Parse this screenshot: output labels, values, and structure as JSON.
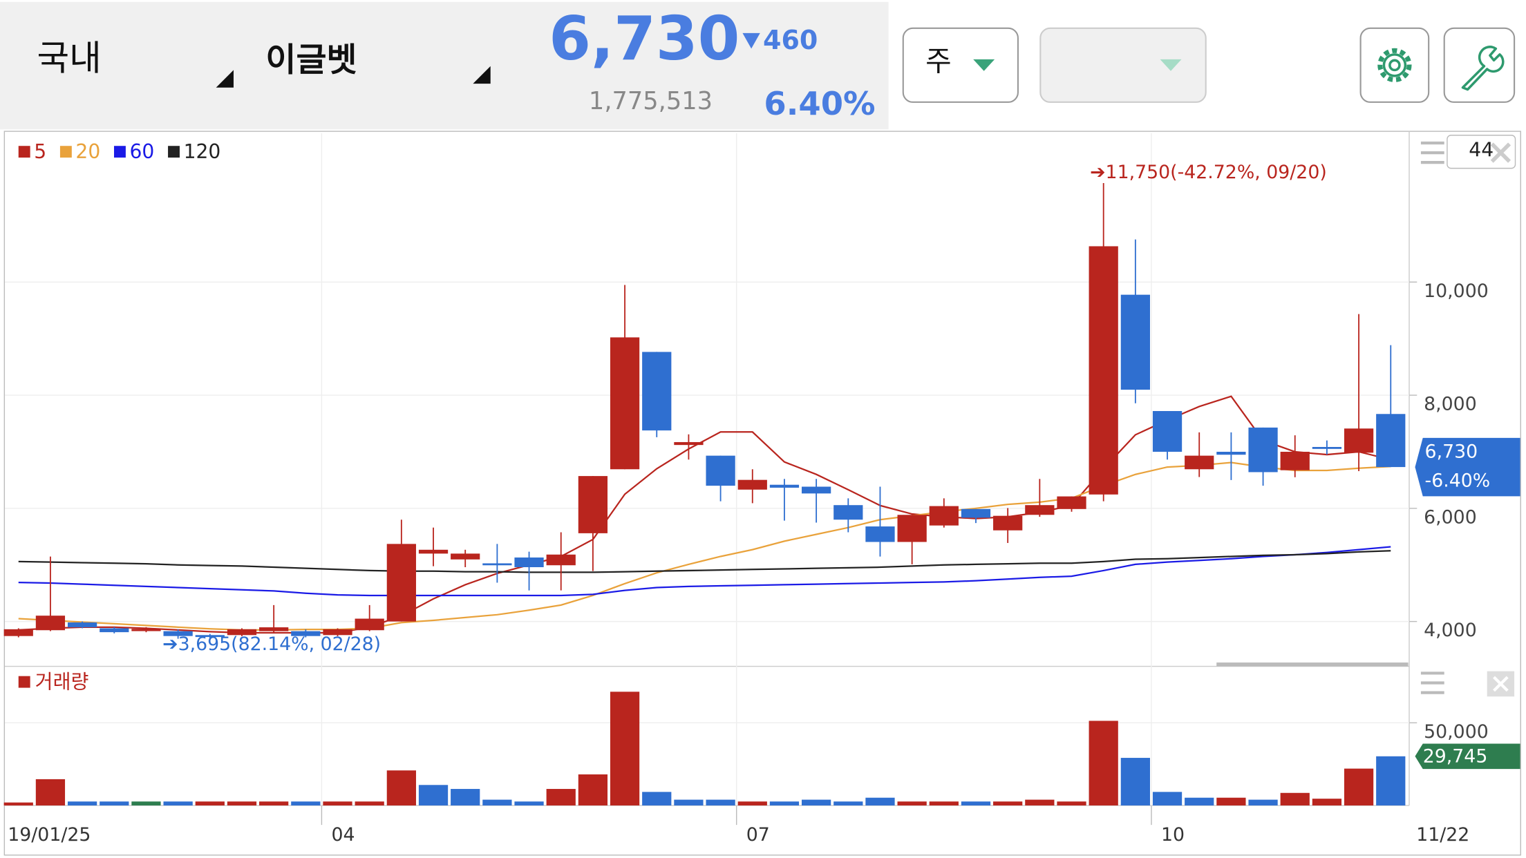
{
  "header": {
    "market": "국내",
    "stock": "이글벳",
    "price": "6,730",
    "change": "460",
    "volume": "1,775,513",
    "change_pct": "6.40%",
    "period": "주",
    "count": "44"
  },
  "chart_data": [
    {
      "type": "candlestick",
      "categories": [
        "19/01/25",
        null,
        null,
        null,
        null,
        null,
        null,
        null,
        null,
        null,
        "04",
        null,
        null,
        null,
        null,
        null,
        null,
        null,
        null,
        null,
        null,
        null,
        null,
        "07",
        null,
        null,
        null,
        null,
        null,
        null,
        null,
        null,
        null,
        null,
        null,
        null,
        "10",
        null,
        null,
        null,
        null,
        null,
        null,
        "11/22"
      ],
      "open": [
        3743,
        3846,
        3983,
        3880,
        3830,
        3829,
        3760,
        3760,
        3829,
        3829,
        3760,
        3846,
        4000,
        5200,
        5097,
        5028,
        5131,
        4994,
        5560,
        6691,
        8765,
        7120,
        6931,
        6331,
        6417,
        6383,
        6057,
        5680,
        5406,
        5697,
        5988,
        5611,
        5885,
        5988,
        6245,
        9776,
        7720,
        6691,
        7000,
        7428,
        6674,
        7085,
        6983,
        7668
      ],
      "high": [
        3880,
        5148,
        4000,
        3900,
        3900,
        3860,
        3780,
        3880,
        4290,
        3860,
        3880,
        4290,
        5800,
        5660,
        5268,
        5371,
        5234,
        5577,
        6571,
        9948,
        8765,
        7308,
        6931,
        6691,
        6520,
        6520,
        6177,
        6383,
        5885,
        6177,
        5988,
        6005,
        6520,
        6211,
        11750,
        10753,
        7720,
        7343,
        7343,
        7428,
        7291,
        7200,
        9434,
        8885
      ],
      "low": [
        3720,
        3830,
        3880,
        3790,
        3810,
        3695,
        3700,
        3740,
        3810,
        3720,
        3740,
        3830,
        4000,
        4977,
        4960,
        4686,
        4549,
        4549,
        4891,
        6691,
        7257,
        6862,
        6125,
        6091,
        5783,
        5748,
        5577,
        5148,
        5011,
        5660,
        5740,
        5388,
        5850,
        5940,
        6125,
        7857,
        6862,
        6554,
        6500,
        6400,
        6550,
        6950,
        6657,
        6730
      ],
      "close": [
        3863,
        4103,
        3897,
        3811,
        3870,
        3743,
        3726,
        3863,
        3897,
        3743,
        3863,
        4050,
        5371,
        5268,
        5200,
        4994,
        4960,
        5183,
        6571,
        9022,
        7377,
        7171,
        6400,
        6503,
        6365,
        6263,
        5800,
        5406,
        5885,
        6040,
        5834,
        5868,
        6057,
        6211,
        10633,
        8097,
        7000,
        6931,
        6948,
        6640,
        7000,
        7051,
        7411,
        6730
      ],
      "up_color": "#b9251e",
      "down_color": "#2f6fd0",
      "series": [
        {
          "name": "5",
          "color": "#b9251e",
          "values": [
            3850,
            3880,
            3900,
            3900,
            3880,
            3850,
            3820,
            3800,
            3800,
            3800,
            3800,
            3900,
            4100,
            4400,
            4650,
            4850,
            5000,
            5150,
            5450,
            6250,
            6700,
            7050,
            7350,
            7350,
            6820,
            6600,
            6330,
            6050,
            5900,
            5850,
            5820,
            5850,
            5930,
            6050,
            6700,
            7300,
            7560,
            7800,
            7980,
            7200,
            7000,
            6950,
            7000,
            6860
          ]
        },
        {
          "name": "20",
          "color": "#e9a23b",
          "values": [
            4050,
            4020,
            3990,
            3960,
            3930,
            3900,
            3870,
            3850,
            3850,
            3860,
            3860,
            3880,
            3980,
            4020,
            4070,
            4120,
            4200,
            4290,
            4460,
            4670,
            4860,
            5010,
            5150,
            5270,
            5420,
            5540,
            5660,
            5800,
            5870,
            5940,
            6000,
            6070,
            6110,
            6180,
            6400,
            6600,
            6730,
            6760,
            6810,
            6730,
            6670,
            6670,
            6710,
            6740
          ]
        },
        {
          "name": "60",
          "color": "#1a1ae6",
          "values": [
            4690,
            4680,
            4660,
            4640,
            4620,
            4600,
            4580,
            4560,
            4540,
            4500,
            4470,
            4460,
            4460,
            4460,
            4460,
            4460,
            4460,
            4460,
            4480,
            4550,
            4600,
            4620,
            4630,
            4640,
            4650,
            4660,
            4670,
            4680,
            4690,
            4700,
            4720,
            4750,
            4780,
            4800,
            4900,
            5010,
            5050,
            5080,
            5110,
            5150,
            5180,
            5220,
            5270,
            5320
          ]
        },
        {
          "name": "120",
          "color": "#222222",
          "values": [
            5060,
            5050,
            5040,
            5030,
            5020,
            5000,
            4990,
            4980,
            4960,
            4940,
            4920,
            4900,
            4890,
            4890,
            4880,
            4880,
            4870,
            4870,
            4870,
            4880,
            4890,
            4900,
            4910,
            4920,
            4930,
            4940,
            4950,
            4960,
            4980,
            5000,
            5010,
            5020,
            5030,
            5030,
            5060,
            5100,
            5110,
            5130,
            5150,
            5170,
            5180,
            5200,
            5230,
            5250
          ]
        }
      ],
      "ylim": [
        3310,
        12630
      ],
      "yticks": [
        {
          "value": 4000,
          "label": "4,000"
        },
        {
          "value": 6000,
          "label": "6,000"
        },
        {
          "value": 8000,
          "label": "8,000"
        },
        {
          "value": 10000,
          "label": "10,000"
        }
      ],
      "grid": true,
      "annotations": [
        "➔11,750(-42.72%, 09/20)",
        "➔3,695(82.14%, 02/28)"
      ],
      "price_tag": [
        "6,730",
        "-6.40%"
      ]
    },
    {
      "type": "bar",
      "series": [
        {
          "name": "거래량",
          "color": "#b9251e",
          "values": [
            1800,
            15900,
            2400,
            2400,
            2400,
            2400,
            2400,
            2400,
            2400,
            2400,
            2400,
            2400,
            21200,
            12400,
            10000,
            3500,
            2400,
            10000,
            18800,
            68800,
            8200,
            3500,
            3500,
            2400,
            2400,
            3500,
            2400,
            4700,
            2400,
            2400,
            2400,
            2400,
            3500,
            2400,
            51200,
            28800,
            8200,
            4700,
            4700,
            3500,
            7600,
            4100,
            22300,
            29745
          ],
          "colors": [
            "#b9251e",
            "#b9251e",
            "#2f6fd0",
            "#2f6fd0",
            "#2e7d4f",
            "#2f6fd0",
            "#b9251e",
            "#b9251e",
            "#b9251e",
            "#2f6fd0",
            "#b9251e",
            "#b9251e",
            "#b9251e",
            "#2f6fd0",
            "#2f6fd0",
            "#2f6fd0",
            "#2f6fd0",
            "#b9251e",
            "#b9251e",
            "#b9251e",
            "#2f6fd0",
            "#2f6fd0",
            "#2f6fd0",
            "#b9251e",
            "#2f6fd0",
            "#2f6fd0",
            "#2f6fd0",
            "#2f6fd0",
            "#b9251e",
            "#b9251e",
            "#2f6fd0",
            "#b9251e",
            "#b9251e",
            "#b9251e",
            "#b9251e",
            "#2f6fd0",
            "#2f6fd0",
            "#2f6fd0",
            "#b9251e",
            "#2f6fd0",
            "#b9251e",
            "#b9251e",
            "#b9251e",
            "#2f6fd0"
          ],
          "value_labels": [
            null,
            null,
            null,
            null,
            null,
            null,
            null,
            null,
            null,
            null,
            null,
            null,
            null,
            null,
            null,
            null,
            null,
            null,
            null,
            null,
            null,
            null,
            null,
            null,
            null,
            null,
            null,
            null,
            null,
            null,
            null,
            null,
            null,
            null,
            null,
            null,
            null,
            null,
            null,
            null,
            null,
            null,
            null,
            "29,745"
          ]
        }
      ],
      "ylim": [
        0,
        81800
      ],
      "yticks": [
        {
          "value": 50000,
          "label": "50,000"
        }
      ],
      "grid": true
    }
  ]
}
